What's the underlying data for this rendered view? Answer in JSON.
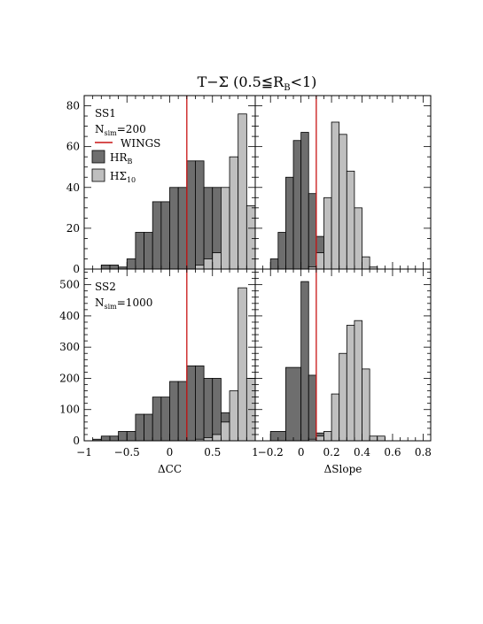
{
  "figure": {
    "title": "T−Σ (0.5≦R",
    "title_sub": "B",
    "title_end": "<1)"
  },
  "legend": {
    "wings": "WINGS",
    "hrb_main": "HR",
    "hrb_sub": "B",
    "hs_main": "HΣ",
    "hs_sub": "10"
  },
  "colors": {
    "dark_fill": "#6e6e6e",
    "light_fill": "#bfbfbf",
    "wings_line": "#c81414",
    "axis": "#000000"
  },
  "chart_data": [
    {
      "type": "bar",
      "panel": "top-left",
      "row_label": "SS1",
      "nsim_label": "N",
      "nsim_sub": "sim",
      "nsim_value": "=200",
      "xlim": [
        -1,
        1
      ],
      "ylim": [
        0,
        85
      ],
      "yticks": [
        0,
        20,
        40,
        60,
        80
      ],
      "xlabel": "",
      "wings_value": 0.2,
      "series": [
        {
          "name": "HR",
          "color": "dark",
          "edges": [
            -0.8,
            -0.7,
            -0.6,
            -0.5,
            -0.4,
            -0.3,
            -0.2,
            -0.1,
            0.0,
            0.1,
            0.2,
            0.3,
            0.4,
            0.5,
            0.6,
            0.7,
            0.8
          ],
          "values": [
            2,
            2,
            1,
            5,
            18,
            18,
            33,
            33,
            40,
            40,
            53,
            53,
            40,
            40,
            10,
            2
          ]
        },
        {
          "name": "HΣ",
          "color": "light",
          "edges": [
            0.3,
            0.4,
            0.5,
            0.6,
            0.7,
            0.8,
            0.9,
            1.0
          ],
          "values": [
            2,
            5,
            8,
            40,
            55,
            76,
            31
          ]
        }
      ]
    },
    {
      "type": "bar",
      "panel": "top-right",
      "row_label": "",
      "xlim": [
        -0.3,
        0.85
      ],
      "ylim": [
        0,
        85
      ],
      "wings_value": 0.1,
      "series": [
        {
          "name": "HR",
          "color": "dark",
          "edges": [
            -0.2,
            -0.15,
            -0.1,
            -0.05,
            0.0,
            0.05,
            0.1,
            0.15,
            0.2
          ],
          "values": [
            5,
            18,
            45,
            63,
            67,
            37,
            16,
            2
          ]
        },
        {
          "name": "HΣ",
          "color": "light",
          "edges": [
            0.05,
            0.1,
            0.15,
            0.2,
            0.25,
            0.3,
            0.35,
            0.4,
            0.45,
            0.5
          ],
          "values": [
            1,
            8,
            35,
            72,
            66,
            48,
            30,
            6,
            1
          ]
        }
      ]
    },
    {
      "type": "bar",
      "panel": "bottom-left",
      "row_label": "SS2",
      "nsim_label": "N",
      "nsim_sub": "sim",
      "nsim_value": "=1000",
      "xlim": [
        -1,
        1
      ],
      "ylim": [
        0,
        550
      ],
      "yticks": [
        0,
        100,
        200,
        300,
        400,
        500
      ],
      "xticks": [
        -1,
        -0.5,
        0,
        0.5,
        1
      ],
      "xtick_labels": [
        "−1",
        "−0.5",
        "0",
        "0.5",
        "1"
      ],
      "xlabel": "ΔCC",
      "wings_value": 0.2,
      "series": [
        {
          "name": "HR",
          "color": "dark",
          "edges": [
            -0.9,
            -0.8,
            -0.7,
            -0.6,
            -0.5,
            -0.4,
            -0.3,
            -0.2,
            -0.1,
            0.0,
            0.1,
            0.2,
            0.3,
            0.4,
            0.5,
            0.6,
            0.7,
            0.8
          ],
          "values": [
            5,
            15,
            15,
            30,
            30,
            85,
            85,
            140,
            140,
            190,
            190,
            240,
            240,
            200,
            200,
            90,
            10
          ]
        },
        {
          "name": "HΣ",
          "color": "light",
          "edges": [
            0.3,
            0.4,
            0.5,
            0.6,
            0.7,
            0.8,
            0.9,
            1.0
          ],
          "values": [
            5,
            10,
            20,
            60,
            160,
            490,
            200
          ]
        }
      ]
    },
    {
      "type": "bar",
      "panel": "bottom-right",
      "row_label": "",
      "xlim": [
        -0.3,
        0.85
      ],
      "ylim": [
        0,
        550
      ],
      "xticks": [
        -0.2,
        0,
        0.2,
        0.4,
        0.6,
        0.8
      ],
      "xtick_labels": [
        "−0.2",
        "0",
        "0.2",
        "0.4",
        "0.6",
        "0.8"
      ],
      "xlabel": "ΔSlope",
      "wings_value": 0.1,
      "series": [
        {
          "name": "HR",
          "color": "dark",
          "edges": [
            -0.2,
            -0.1,
            0.0,
            0.05,
            0.1,
            0.2
          ],
          "values": [
            30,
            235,
            510,
            210,
            25
          ]
        },
        {
          "name": "HΣ",
          "color": "light",
          "edges": [
            0.05,
            0.1,
            0.15,
            0.2,
            0.25,
            0.3,
            0.35,
            0.4,
            0.45,
            0.5,
            0.55
          ],
          "values": [
            5,
            15,
            30,
            150,
            280,
            370,
            385,
            230,
            15,
            15
          ]
        }
      ]
    }
  ]
}
